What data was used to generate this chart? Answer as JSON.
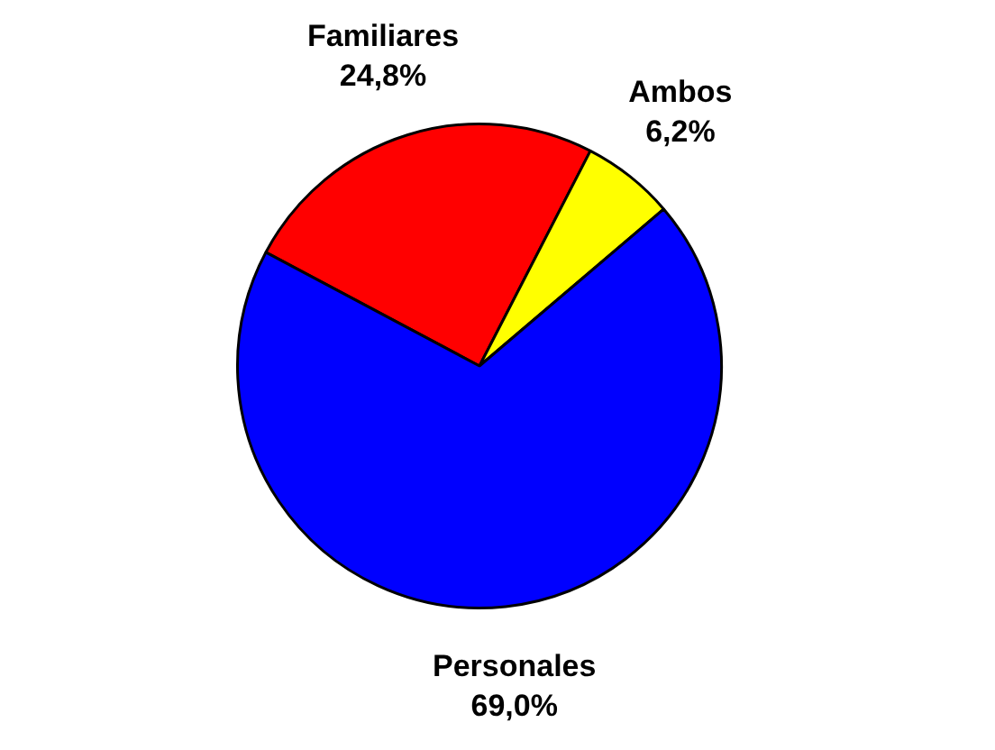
{
  "chart_data": {
    "type": "pie",
    "categories": [
      "Familiares",
      "Ambos",
      "Personales"
    ],
    "values": [
      24.8,
      6.2,
      69.0
    ],
    "colors": [
      "#ff0000",
      "#ffff00",
      "#0000ff"
    ],
    "value_labels": [
      "24,8%",
      "6,2%",
      "69,0%"
    ],
    "legend": false
  }
}
